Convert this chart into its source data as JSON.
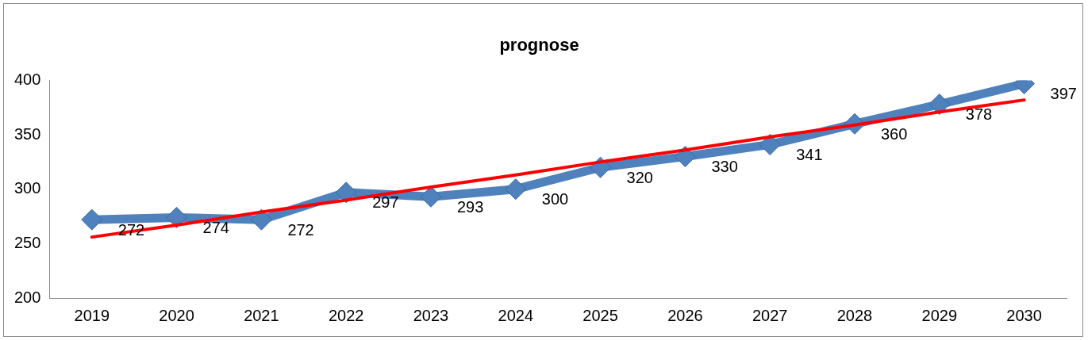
{
  "chart_data": {
    "type": "line",
    "title": "prognose",
    "categories": [
      "2019",
      "2020",
      "2021",
      "2022",
      "2023",
      "2024",
      "2025",
      "2026",
      "2027",
      "2028",
      "2029",
      "2030"
    ],
    "series": [
      {
        "color": "#4f81bd",
        "values": [
          272,
          274,
          272,
          297,
          293,
          300,
          320,
          330,
          341,
          360,
          378,
          397
        ],
        "value_labels": [
          "272",
          "274",
          "272",
          "297",
          "293",
          "300",
          "320",
          "330",
          "341",
          "360",
          "378",
          "397"
        ],
        "marker": "diamond"
      },
      {
        "type": "line",
        "color": "#ff0000",
        "values": [
          256,
          267,
          279,
          290,
          302,
          313,
          325,
          336,
          348,
          359,
          371,
          382
        ],
        "marker": "none"
      }
    ],
    "ylim": [
      200,
      400
    ],
    "yticks": [
      200,
      250,
      300,
      350,
      400
    ],
    "grid": false,
    "legend": false
  }
}
